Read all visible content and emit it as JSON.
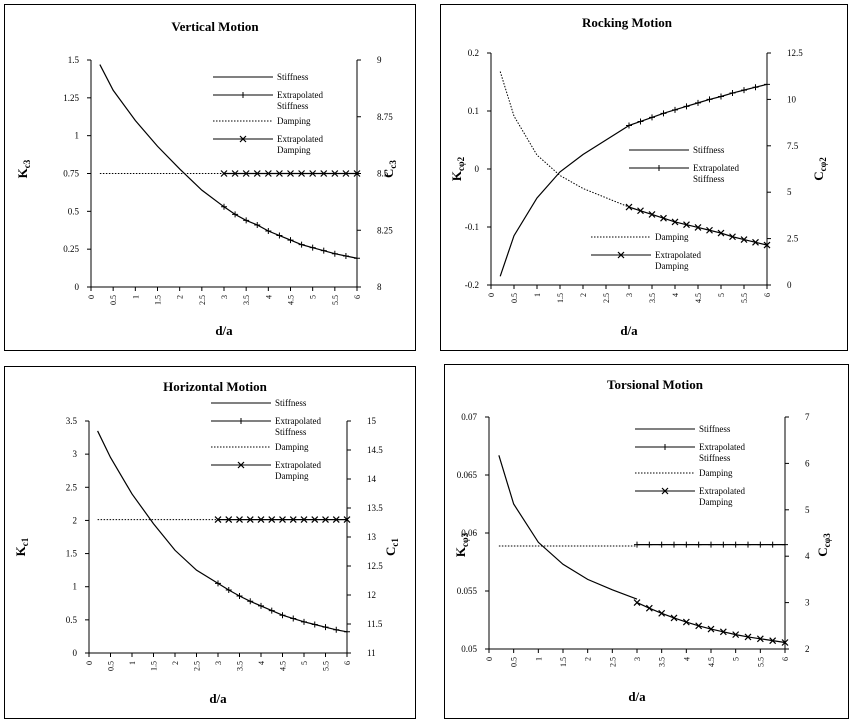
{
  "chart_data": [
    {
      "type": "line",
      "title": "Vertical Motion",
      "xlabel": "d/a",
      "ylabel": "K",
      "ylabel_sub": "c3",
      "y2label": "C",
      "y2label_sub": "c3",
      "xlim": [
        0,
        6
      ],
      "ylim": [
        0,
        1.5
      ],
      "y2lim": [
        8,
        9
      ],
      "x_ticks": [
        "0",
        "0.5",
        "1",
        "1.5",
        "2",
        "2.5",
        "3",
        "3.5",
        "4",
        "4.5",
        "5",
        "5.5",
        "6"
      ],
      "y_ticks": [
        "0",
        "0.25",
        "0.5",
        "0.75",
        "1",
        "1.25",
        "1.5"
      ],
      "y2_ticks": [
        "8",
        "8.25",
        "8.5",
        "8.75",
        "9"
      ],
      "legend": [
        "Stiffness",
        "Extrapolated\nStiffness",
        "Damping",
        "Extrapolated\nDamping"
      ],
      "series": [
        {
          "name": "Stiffness",
          "axis": "left",
          "style": "solid",
          "x": [
            0.2,
            0.5,
            1,
            1.5,
            2,
            2.5,
            3
          ],
          "y": [
            1.47,
            1.3,
            1.1,
            0.93,
            0.78,
            0.64,
            0.53
          ]
        },
        {
          "name": "Extrapolated Stiffness",
          "axis": "left",
          "style": "plus",
          "x": [
            3,
            3.25,
            3.5,
            3.75,
            4,
            4.25,
            4.5,
            4.75,
            5,
            5.25,
            5.5,
            5.75,
            6
          ],
          "y": [
            0.53,
            0.48,
            0.44,
            0.41,
            0.37,
            0.34,
            0.31,
            0.28,
            0.26,
            0.24,
            0.22,
            0.205,
            0.19
          ]
        },
        {
          "name": "Damping",
          "axis": "right",
          "style": "dotted",
          "x": [
            0.2,
            1,
            2,
            3
          ],
          "y": [
            8.5,
            8.5,
            8.5,
            8.5
          ]
        },
        {
          "name": "Extrapolated Damping",
          "axis": "right",
          "style": "cross",
          "x": [
            3,
            3.25,
            3.5,
            3.75,
            4,
            4.25,
            4.5,
            4.75,
            5,
            5.25,
            5.5,
            5.75,
            6
          ],
          "y": [
            8.5,
            8.5,
            8.5,
            8.5,
            8.5,
            8.5,
            8.5,
            8.5,
            8.5,
            8.5,
            8.5,
            8.5,
            8.5
          ]
        }
      ]
    },
    {
      "type": "line",
      "title": "Rocking Motion",
      "xlabel": "d/a",
      "ylabel": "K",
      "ylabel_sub": "cφ2",
      "y2label": "C",
      "y2label_sub": "cφ2",
      "xlim": [
        0,
        6
      ],
      "ylim": [
        -0.2,
        0.2
      ],
      "y2lim": [
        0,
        12.5
      ],
      "x_ticks": [
        "0",
        "0.5",
        "1",
        "1.5",
        "2",
        "2.5",
        "3",
        "3.5",
        "4",
        "4.5",
        "5",
        "5.5",
        "6"
      ],
      "y_ticks": [
        "-0.2",
        "-0.1",
        "0",
        "0.1",
        "0.2"
      ],
      "y2_ticks": [
        "0",
        "2.5",
        "5",
        "7.5",
        "10",
        "12.5"
      ],
      "legend": [
        "Stiffness",
        "Extrapolated\nStiffness",
        "Damping",
        "Extrapolated\nDamping"
      ],
      "series": [
        {
          "name": "Stiffness",
          "axis": "left",
          "style": "solid",
          "x": [
            0.2,
            0.5,
            1,
            1.5,
            2,
            2.5,
            3
          ],
          "y": [
            -0.185,
            -0.115,
            -0.05,
            -0.005,
            0.025,
            0.05,
            0.075
          ]
        },
        {
          "name": "Extrapolated Stiffness",
          "axis": "left",
          "style": "plus",
          "x": [
            3,
            3.25,
            3.5,
            3.75,
            4,
            4.25,
            4.5,
            4.75,
            5,
            5.25,
            5.5,
            5.75,
            6
          ],
          "y": [
            0.075,
            0.082,
            0.089,
            0.096,
            0.102,
            0.108,
            0.114,
            0.12,
            0.125,
            0.131,
            0.136,
            0.141,
            0.146
          ]
        },
        {
          "name": "Damping",
          "axis": "right",
          "style": "dotted",
          "x": [
            0.2,
            0.5,
            1,
            1.5,
            2,
            2.5,
            3
          ],
          "y": [
            11.5,
            9.1,
            7.0,
            5.9,
            5.2,
            4.7,
            4.2
          ]
        },
        {
          "name": "Extrapolated Damping",
          "axis": "right",
          "style": "cross",
          "x": [
            3,
            3.25,
            3.5,
            3.75,
            4,
            4.25,
            4.5,
            4.75,
            5,
            5.25,
            5.5,
            5.75,
            6
          ],
          "y": [
            4.2,
            4.0,
            3.8,
            3.6,
            3.4,
            3.25,
            3.1,
            2.95,
            2.8,
            2.6,
            2.45,
            2.3,
            2.15
          ]
        }
      ]
    },
    {
      "type": "line",
      "title": "Horizontal Motion",
      "xlabel": "d/a",
      "ylabel": "K",
      "ylabel_sub": "c1",
      "y2label": "C",
      "y2label_sub": "c1",
      "xlim": [
        0,
        6
      ],
      "ylim": [
        0,
        3.5
      ],
      "y2lim": [
        11,
        15
      ],
      "x_ticks": [
        "0",
        "0.5",
        "1",
        "1.5",
        "2",
        "2.5",
        "3",
        "3.5",
        "4",
        "4.5",
        "5",
        "5.5",
        "6"
      ],
      "y_ticks": [
        "0",
        "0.5",
        "1",
        "1.5",
        "2",
        "2.5",
        "3",
        "3.5"
      ],
      "y2_ticks": [
        "11",
        "11.5",
        "12",
        "12.5",
        "13",
        "13.5",
        "14",
        "14.5",
        "15"
      ],
      "legend": [
        "Stiffness",
        "Extrapolated\nStiffness",
        "Damping",
        "Extrapolated\nDamping"
      ],
      "series": [
        {
          "name": "Stiffness",
          "axis": "left",
          "style": "solid",
          "x": [
            0.2,
            0.5,
            1,
            1.5,
            2,
            2.5,
            3
          ],
          "y": [
            3.35,
            2.95,
            2.4,
            1.95,
            1.55,
            1.25,
            1.05
          ]
        },
        {
          "name": "Extrapolated Stiffness",
          "axis": "left",
          "style": "plus",
          "x": [
            3,
            3.25,
            3.5,
            3.75,
            4,
            4.25,
            4.5,
            4.75,
            5,
            5.25,
            5.5,
            5.75,
            6
          ],
          "y": [
            1.05,
            0.95,
            0.86,
            0.78,
            0.71,
            0.64,
            0.57,
            0.52,
            0.47,
            0.43,
            0.39,
            0.35,
            0.32
          ]
        },
        {
          "name": "Damping",
          "axis": "right",
          "style": "dotted",
          "x": [
            0.2,
            1,
            2,
            3
          ],
          "y": [
            13.3,
            13.3,
            13.3,
            13.3
          ]
        },
        {
          "name": "Extrapolated Damping",
          "axis": "right",
          "style": "cross",
          "x": [
            3,
            3.25,
            3.5,
            3.75,
            4,
            4.25,
            4.5,
            4.75,
            5,
            5.25,
            5.5,
            5.75,
            6
          ],
          "y": [
            13.3,
            13.3,
            13.3,
            13.3,
            13.3,
            13.3,
            13.3,
            13.3,
            13.3,
            13.3,
            13.3,
            13.3,
            13.3
          ]
        }
      ]
    },
    {
      "type": "line",
      "title": "Torsional Motion",
      "xlabel": "d/a",
      "ylabel": "K",
      "ylabel_sub": "cφ3",
      "y2label": "C",
      "y2label_sub": "cφ3",
      "xlim": [
        0,
        6
      ],
      "ylim": [
        0.05,
        0.07
      ],
      "y2lim": [
        2,
        7
      ],
      "x_ticks": [
        "0",
        "0.5",
        "1",
        "1.5",
        "2",
        "2.5",
        "3",
        "3.5",
        "4",
        "4.5",
        "5",
        "5.5",
        "6"
      ],
      "y_ticks": [
        "0.05",
        "0.055",
        "0.06",
        "0.065",
        "0.07"
      ],
      "y2_ticks": [
        "2",
        "3",
        "4",
        "5",
        "6",
        "7"
      ],
      "legend": [
        "Stiffness",
        "Extrapolated\nStiffness",
        "Damping",
        "Extrapolated\nDamping"
      ],
      "series": [
        {
          "name": "Stiffness",
          "axis": "left",
          "style": "solid",
          "x": [
            0.2,
            0.5,
            1,
            1.5,
            2,
            2.5,
            3
          ],
          "y": [
            0.0667,
            0.0625,
            0.0592,
            0.0573,
            0.056,
            0.0551,
            0.0543
          ]
        },
        {
          "name": "Extrapolated Stiffness",
          "axis": "left",
          "style": "plus",
          "x": [
            3,
            3.25,
            3.5,
            3.75,
            4,
            4.25,
            4.5,
            4.75,
            5,
            5.25,
            5.5,
            5.75,
            6
          ],
          "y": [
            0.059,
            0.059,
            0.059,
            0.059,
            0.059,
            0.059,
            0.059,
            0.059,
            0.059,
            0.059,
            0.059,
            0.059,
            0.059
          ]
        },
        {
          "name": "Damping",
          "axis": "right",
          "style": "dotted",
          "x": [
            0.2,
            1,
            2,
            3
          ],
          "y": [
            4.22,
            4.22,
            4.22,
            4.22
          ]
        },
        {
          "name": "Extrapolated Damping",
          "axis": "right",
          "style": "cross",
          "x": [
            3,
            3.25,
            3.5,
            3.75,
            4,
            4.25,
            4.5,
            4.75,
            5,
            5.25,
            5.5,
            5.75,
            6
          ],
          "y": [
            3.0,
            2.88,
            2.77,
            2.67,
            2.58,
            2.5,
            2.43,
            2.37,
            2.31,
            2.26,
            2.22,
            2.18,
            2.14
          ]
        }
      ]
    }
  ]
}
